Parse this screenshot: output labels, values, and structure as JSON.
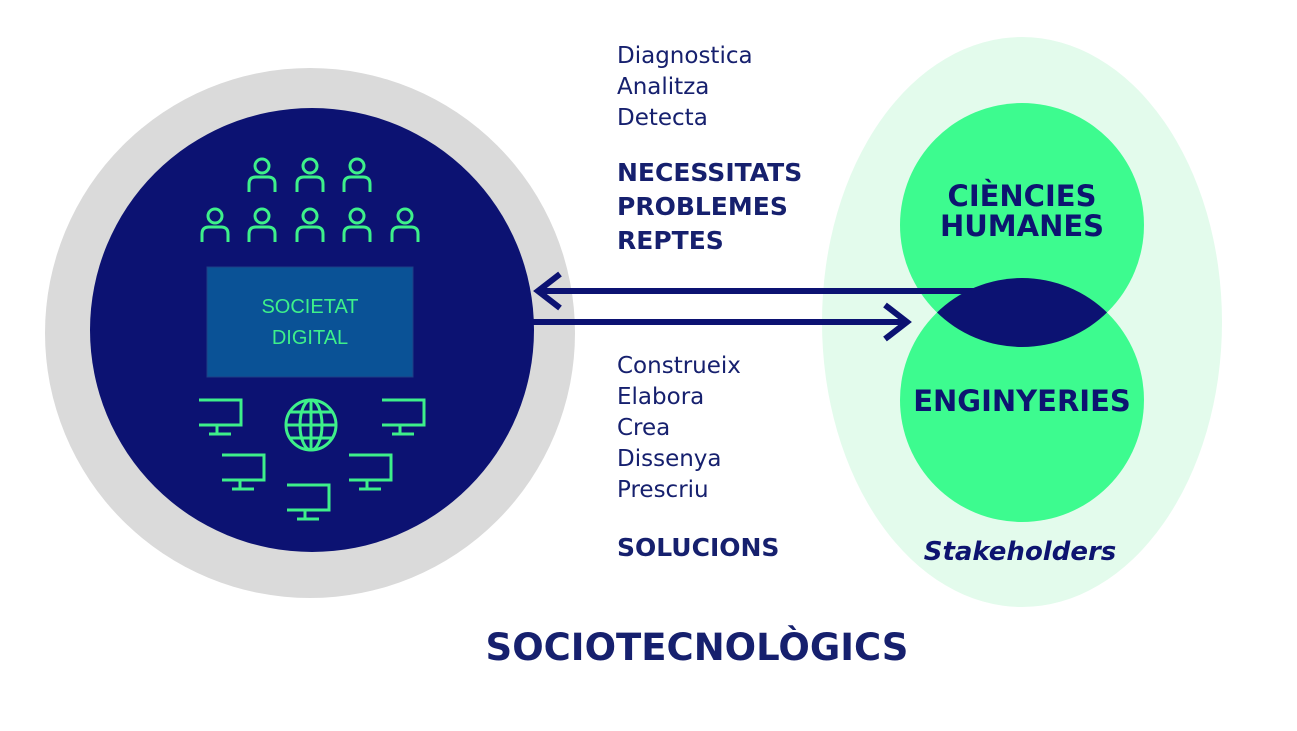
{
  "left": {
    "label_lines": [
      "SOCIETAT",
      "DIGITAL"
    ]
  },
  "top": {
    "verbs": [
      "Diagnostica",
      "Analitza",
      "Detecta"
    ],
    "outcomes": [
      "NECESSITATS",
      "PROBLEMES",
      "REPTES"
    ]
  },
  "bottom": {
    "verbs": [
      "Construeix",
      "Elabora",
      "Crea",
      "Dissenya",
      "Prescriu"
    ],
    "outcome": "SOLUCIONS"
  },
  "right": {
    "top_circle": [
      "CIÈNCIES",
      "HUMANES"
    ],
    "bottom_circle": "ENGINYERIES",
    "caption": "Stakeholders"
  },
  "footer": "SOCIOTECNOLÒGICS"
}
